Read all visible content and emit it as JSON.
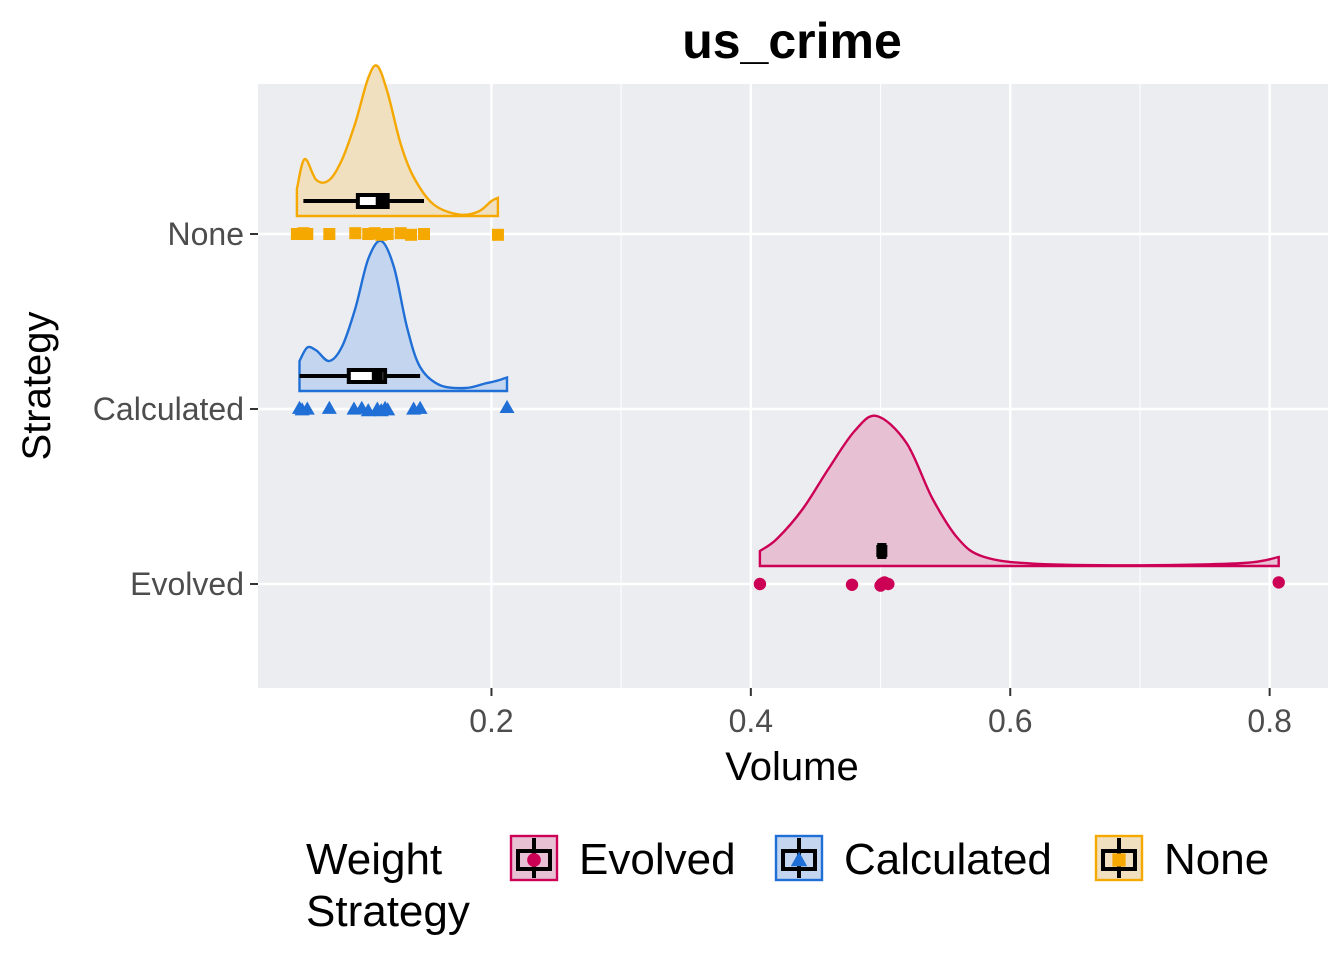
{
  "chart_data": {
    "type": "raincloud",
    "title": "us_crime",
    "xlabel": "Volume",
    "ylabel": "Strategy",
    "xlim": [
      0.02,
      0.845
    ],
    "x_ticks": [
      "0.2",
      "0.4",
      "0.6",
      "0.8"
    ],
    "x_tick_values": [
      0.2,
      0.4,
      0.6,
      0.8
    ],
    "categories": [
      "Evolved",
      "Calculated",
      "None"
    ],
    "grid": true,
    "legend": {
      "title_lines": [
        "Weight",
        "Strategy"
      ],
      "placement": "bottom",
      "entries": [
        "Evolved",
        "Calculated",
        "None"
      ]
    },
    "series": [
      {
        "name": "Evolved",
        "color": "#cc0055",
        "fill": "#e8c0d4",
        "marker": "circle",
        "points": [
          0.407,
          0.478,
          0.5,
          0.501,
          0.503,
          0.506,
          0.807
        ],
        "point_offsets": [
          0.0,
          -0.01,
          -0.02,
          0.0,
          0.02,
          0.0,
          0.02
        ],
        "density": [
          [
            0.407,
            0.1
          ],
          [
            0.42,
            0.18
          ],
          [
            0.44,
            0.38
          ],
          [
            0.46,
            0.65
          ],
          [
            0.48,
            0.9
          ],
          [
            0.497,
            1.0
          ],
          [
            0.52,
            0.82
          ],
          [
            0.54,
            0.45
          ],
          [
            0.56,
            0.18
          ],
          [
            0.58,
            0.06
          ],
          [
            0.62,
            0.015
          ],
          [
            0.7,
            0.005
          ],
          [
            0.78,
            0.02
          ],
          [
            0.807,
            0.06
          ]
        ],
        "box": {
          "q1": 0.499,
          "median": 0.501,
          "q3": 0.503,
          "whisker_low": 0.499,
          "whisker_high": 0.503
        }
      },
      {
        "name": "Calculated",
        "color": "#1f6fd6",
        "fill": "#c4d6ef",
        "marker": "triangle",
        "points": [
          0.052,
          0.054,
          0.058,
          0.075,
          0.094,
          0.1,
          0.105,
          0.112,
          0.115,
          0.118,
          0.12,
          0.14,
          0.145,
          0.212
        ],
        "point_offsets": [
          0.01,
          -0.01,
          0.0,
          0.01,
          0.0,
          0.01,
          -0.02,
          0.0,
          -0.02,
          0.01,
          -0.01,
          0.0,
          0.01,
          0.02
        ],
        "density": [
          [
            0.052,
            0.2
          ],
          [
            0.058,
            0.29
          ],
          [
            0.065,
            0.27
          ],
          [
            0.075,
            0.2
          ],
          [
            0.085,
            0.3
          ],
          [
            0.095,
            0.55
          ],
          [
            0.105,
            0.88
          ],
          [
            0.115,
            1.0
          ],
          [
            0.125,
            0.82
          ],
          [
            0.135,
            0.42
          ],
          [
            0.145,
            0.16
          ],
          [
            0.16,
            0.04
          ],
          [
            0.18,
            0.02
          ],
          [
            0.195,
            0.05
          ],
          [
            0.205,
            0.07
          ],
          [
            0.212,
            0.09
          ]
        ],
        "box": {
          "q1": 0.09,
          "median": 0.112,
          "q3": 0.118,
          "whisker_low": 0.052,
          "whisker_high": 0.145
        }
      },
      {
        "name": "None",
        "color": "#f5a800",
        "fill": "#f0e0c0",
        "marker": "square",
        "points": [
          0.05,
          0.055,
          0.058,
          0.075,
          0.095,
          0.105,
          0.11,
          0.115,
          0.12,
          0.13,
          0.138,
          0.148,
          0.205
        ],
        "point_offsets": [
          0.0,
          0.01,
          0.0,
          0.0,
          0.01,
          0.0,
          0.01,
          -0.01,
          0.0,
          0.01,
          -0.01,
          0.0,
          -0.01
        ],
        "density": [
          [
            0.05,
            0.18
          ],
          [
            0.056,
            0.38
          ],
          [
            0.065,
            0.24
          ],
          [
            0.075,
            0.24
          ],
          [
            0.085,
            0.38
          ],
          [
            0.095,
            0.62
          ],
          [
            0.105,
            0.92
          ],
          [
            0.112,
            1.0
          ],
          [
            0.12,
            0.82
          ],
          [
            0.13,
            0.48
          ],
          [
            0.14,
            0.26
          ],
          [
            0.155,
            0.08
          ],
          [
            0.175,
            0.01
          ],
          [
            0.19,
            0.03
          ],
          [
            0.2,
            0.1
          ],
          [
            0.205,
            0.12
          ]
        ],
        "box": {
          "q1": 0.097,
          "median": 0.115,
          "q3": 0.12,
          "whisker_low": 0.055,
          "whisker_high": 0.148
        }
      }
    ]
  }
}
